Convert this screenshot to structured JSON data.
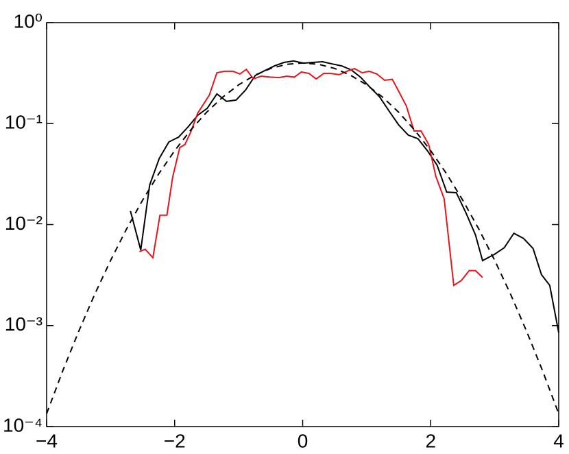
{
  "chart_data": {
    "type": "line",
    "xlim": [
      -4,
      4
    ],
    "xticks": [
      {
        "value": -4,
        "label": "−4"
      },
      {
        "value": -2,
        "label": "−2"
      },
      0,
      2,
      4
    ],
    "ylim": [
      0.0001,
      1
    ],
    "yticks": [
      {
        "value": 0.0001,
        "label": "10⁻⁴"
      },
      {
        "value": 0.001,
        "label": "10⁻³"
      },
      {
        "value": 0.01,
        "label": "10⁻²"
      },
      {
        "value": 0.1,
        "label": "10⁻¹"
      },
      {
        "value": 1,
        "label": "10⁰"
      }
    ],
    "yscale": "log",
    "series": [
      {
        "color": "#000000",
        "linestyle": "solid",
        "x": [
          -2.69,
          -2.53,
          -2.39,
          -2.24,
          -2.09,
          -1.94,
          -1.79,
          -1.64,
          -1.49,
          -1.34,
          -1.19,
          -1.04,
          -0.89,
          -0.74,
          -0.59,
          -0.44,
          -0.29,
          -0.14,
          0.01,
          0.16,
          0.31,
          0.46,
          0.61,
          0.76,
          0.91,
          1.05,
          1.2,
          1.35,
          1.5,
          1.65,
          1.8,
          1.95,
          2.1,
          2.25,
          2.4,
          2.55,
          2.7,
          2.81,
          3.0,
          3.15,
          3.3,
          3.45,
          3.6,
          3.73,
          3.86,
          4.0
        ],
        "values": [
          0.0136,
          0.0056,
          0.0246,
          0.0452,
          0.0658,
          0.0734,
          0.0929,
          0.121,
          0.142,
          0.197,
          0.166,
          0.171,
          0.216,
          0.3,
          0.335,
          0.373,
          0.404,
          0.417,
          0.397,
          0.404,
          0.41,
          0.39,
          0.373,
          0.34,
          0.286,
          0.23,
          0.185,
          0.133,
          0.097,
          0.077,
          0.071,
          0.0537,
          0.0388,
          0.021,
          0.0207,
          0.0131,
          0.0079,
          0.0044,
          0.0051,
          0.0059,
          0.0082,
          0.0073,
          0.0058,
          0.0032,
          0.0025,
          0.00085
        ]
      },
      {
        "color": "#e8141c",
        "linestyle": "solid",
        "x": [
          -2.55,
          -2.46,
          -2.34,
          -2.23,
          -2.12,
          -2.03,
          -1.92,
          -1.84,
          -1.75,
          -1.64,
          -1.46,
          -1.34,
          -1.22,
          -1.09,
          -0.98,
          -0.88,
          -0.77,
          -0.65,
          -0.51,
          -0.37,
          -0.25,
          -0.13,
          -0.02,
          0.1,
          0.21,
          0.33,
          0.44,
          0.57,
          0.69,
          0.81,
          0.93,
          1.04,
          1.16,
          1.28,
          1.4,
          1.5,
          1.62,
          1.74,
          1.85,
          1.97,
          2.08,
          2.21,
          2.36,
          2.48,
          2.6,
          2.7,
          2.81
        ],
        "values": [
          0.0054,
          0.0057,
          0.0047,
          0.0124,
          0.0124,
          0.0296,
          0.058,
          0.062,
          0.082,
          0.127,
          0.191,
          0.319,
          0.33,
          0.33,
          0.31,
          0.345,
          0.277,
          0.295,
          0.289,
          0.286,
          0.295,
          0.289,
          0.325,
          0.314,
          0.277,
          0.314,
          0.314,
          0.305,
          0.33,
          0.351,
          0.319,
          0.33,
          0.31,
          0.269,
          0.275,
          0.209,
          0.149,
          0.0845,
          0.0845,
          0.062,
          0.0301,
          0.018,
          0.0025,
          0.0028,
          0.0035,
          0.0035,
          0.003
        ]
      },
      {
        "color": "#000000",
        "linestyle": "dashed",
        "x": [
          -4,
          -3.75,
          -3.5,
          -3.25,
          -3,
          -2.75,
          -2.5,
          -2.25,
          -2,
          -1.75,
          -1.5,
          -1.25,
          -1,
          -0.75,
          -0.5,
          -0.25,
          0,
          0.25,
          0.5,
          0.75,
          1,
          1.25,
          1.5,
          1.75,
          2,
          2.25,
          2.5,
          2.75,
          3,
          3.25,
          3.5,
          3.75,
          4
        ],
        "values": [
          0.000134,
          0.000353,
          0.000873,
          0.00203,
          0.00443,
          0.00908,
          0.0175,
          0.0317,
          0.054,
          0.0863,
          0.1295,
          0.1826,
          0.242,
          0.3011,
          0.3521,
          0.3867,
          0.3989,
          0.3867,
          0.3521,
          0.3011,
          0.242,
          0.1826,
          0.1295,
          0.0863,
          0.054,
          0.0317,
          0.0175,
          0.00908,
          0.00443,
          0.00203,
          0.000873,
          0.000353,
          0.000134
        ]
      }
    ]
  }
}
